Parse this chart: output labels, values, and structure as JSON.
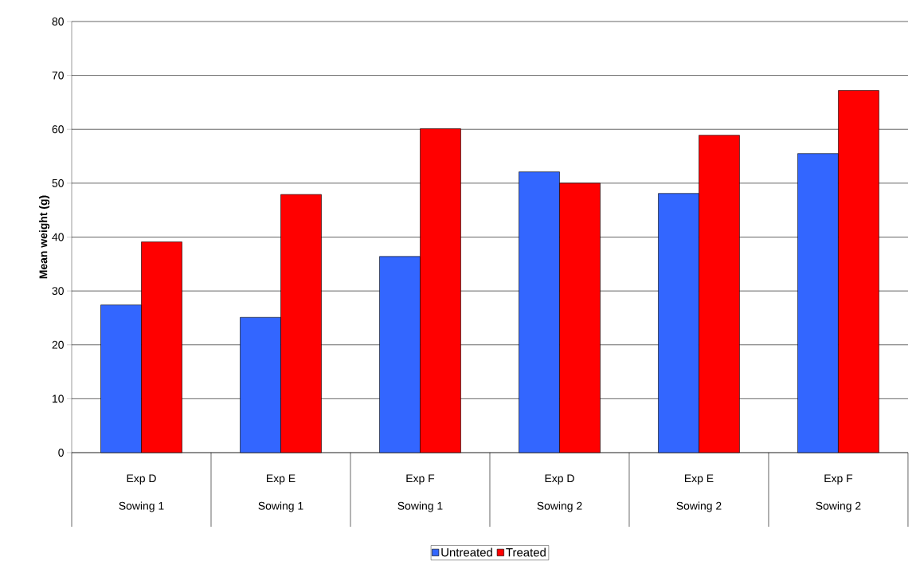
{
  "chart_data": {
    "type": "bar",
    "ylabel": "Mean weight (g)",
    "categories": [
      "Exp D",
      "Exp E",
      "Exp F",
      "Exp D",
      "Exp E",
      "Exp F"
    ],
    "annotations": [
      "Sowing 1",
      "Sowing 1",
      "Sowing 1",
      "Sowing 2",
      "Sowing 2",
      "Sowing 2"
    ],
    "series": [
      {
        "name": "Untreated",
        "color": "#3366ff",
        "values": [
          27.4,
          25.1,
          36.4,
          52.1,
          48.1,
          55.5
        ]
      },
      {
        "name": "Treated",
        "color": "#ff0000",
        "values": [
          39.1,
          47.9,
          60.1,
          50.0,
          58.9,
          67.2
        ]
      }
    ],
    "ylim": [
      0,
      80
    ],
    "yticks": [
      0,
      10,
      20,
      30,
      40,
      50,
      60,
      70,
      80
    ],
    "grid": "y",
    "legend": "bottom"
  }
}
